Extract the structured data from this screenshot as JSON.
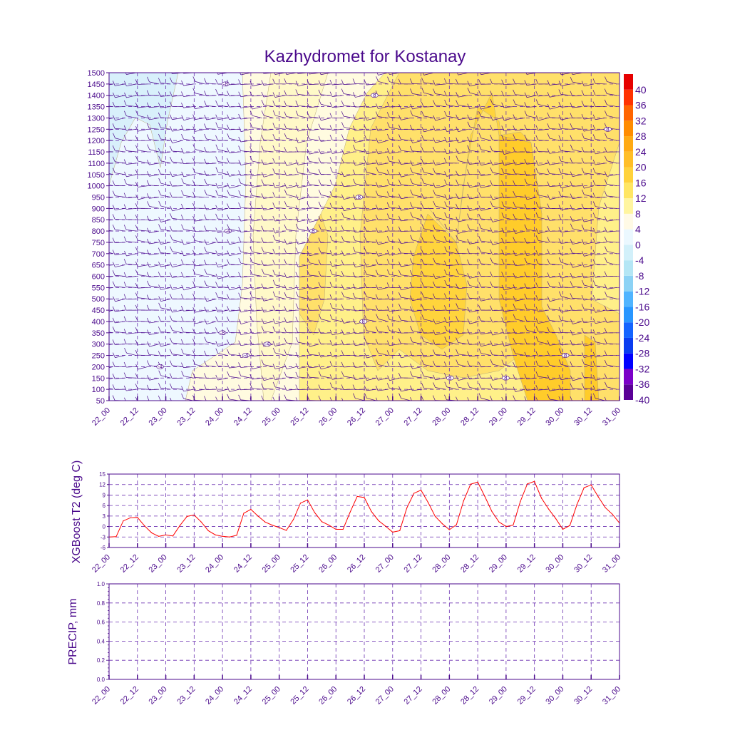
{
  "title": "Kazhydromet for Kostanay",
  "time_labels": [
    "22_00",
    "22_12",
    "23_00",
    "23_12",
    "24_00",
    "24_12",
    "25_00",
    "25_12",
    "26_00",
    "26_12",
    "27_00",
    "27_12",
    "28_00",
    "28_12",
    "29_00",
    "29_12",
    "30_00",
    "30_12",
    "31_00"
  ],
  "colors": {
    "text": "#4b0a8c",
    "line": "#ff0000",
    "colorbar": [
      "#5a0096",
      "#7b00c8",
      "#0000ff",
      "#0a3cf0",
      "#1464ff",
      "#2896ff",
      "#50b4ff",
      "#8cd2f5",
      "#b4e6f5",
      "#d2f0fa",
      "#ebf8ff",
      "#fffae6",
      "#fff5a0",
      "#ffe664",
      "#ffd23c",
      "#ffbe28",
      "#ffaa14",
      "#ff8c00",
      "#ff6400",
      "#ff3200",
      "#e60000"
    ]
  },
  "chart_data": [
    {
      "type": "heatmap",
      "title": "Kazhydromet for Kostanay",
      "xlabel": "",
      "ylabel": "",
      "x_ticks": [
        "22_00",
        "22_12",
        "23_00",
        "23_12",
        "24_00",
        "24_12",
        "25_00",
        "25_12",
        "26_00",
        "26_12",
        "27_00",
        "27_12",
        "28_00",
        "28_12",
        "29_00",
        "29_12",
        "30_00",
        "30_12",
        "31_00"
      ],
      "y_ticks": [
        50,
        100,
        150,
        200,
        250,
        300,
        350,
        400,
        450,
        500,
        550,
        600,
        650,
        700,
        750,
        800,
        850,
        900,
        950,
        1000,
        1050,
        1100,
        1150,
        1200,
        1250,
        1300,
        1350,
        1400,
        1450,
        1500
      ],
      "ylim": [
        50,
        1500
      ],
      "colorbar_levels": [
        -40,
        -36,
        -32,
        -28,
        -24,
        -20,
        -16,
        -12,
        -8,
        -4,
        0,
        4,
        8,
        12,
        16,
        20,
        24,
        28,
        32,
        36,
        40
      ],
      "colorbar_labels": [
        "40",
        "36",
        "32",
        "28",
        "24",
        "20",
        "16",
        "12",
        "8",
        "4",
        "0",
        "-4",
        "-8",
        "-12",
        "-16",
        "-20",
        "-24",
        "-28",
        "-32",
        "-36",
        "-40"
      ],
      "contour_labels": [
        {
          "text": "-8",
          "x": 0.228,
          "y": 1450
        },
        {
          "text": "-4",
          "x": 0.233,
          "y": 800
        },
        {
          "text": "-8",
          "x": 0.222,
          "y": 350
        },
        {
          "text": "-4",
          "x": 0.1,
          "y": 200
        },
        {
          "text": "-4",
          "x": 0.268,
          "y": 250
        },
        {
          "text": "-4",
          "x": 0.31,
          "y": 300
        },
        {
          "text": "8",
          "x": 0.4,
          "y": 800
        },
        {
          "text": "8",
          "x": 0.52,
          "y": 1400
        },
        {
          "text": "8",
          "x": 0.49,
          "y": 950
        },
        {
          "text": "8",
          "x": 0.498,
          "y": 400
        },
        {
          "text": "8",
          "x": 0.668,
          "y": 150
        },
        {
          "text": "8",
          "x": 0.777,
          "y": 150
        },
        {
          "text": "8",
          "x": 0.894,
          "y": 250
        },
        {
          "text": "8",
          "x": 0.977,
          "y": 1250
        }
      ]
    },
    {
      "type": "line",
      "xlabel": "",
      "ylabel": "XGBoost T2 (deg C)",
      "x_ticks": [
        "22_00",
        "22_12",
        "23_00",
        "23_12",
        "24_00",
        "24_12",
        "25_00",
        "25_12",
        "26_00",
        "26_12",
        "27_00",
        "27_12",
        "28_00",
        "28_12",
        "29_00",
        "29_12",
        "30_00",
        "30_12",
        "31_00"
      ],
      "y_ticks": [
        "-6",
        "-3",
        "0",
        "3",
        "6",
        "9",
        "12",
        "15"
      ],
      "ylim": [
        -6,
        15
      ],
      "series": [
        {
          "name": "T2",
          "x": [
            0,
            3,
            6,
            9,
            12,
            15,
            18,
            21,
            24,
            27,
            30,
            33,
            36,
            39,
            42,
            45,
            48,
            51,
            54,
            57,
            60,
            63,
            66,
            69,
            72,
            75,
            78,
            81,
            84,
            87,
            90,
            93,
            96,
            99,
            102,
            105,
            108,
            111,
            114,
            117,
            120,
            123,
            126,
            129,
            132,
            135,
            138,
            141,
            144,
            147,
            150,
            153,
            156,
            159,
            162,
            165,
            168,
            171,
            174,
            177,
            180,
            183,
            186,
            189,
            192,
            195,
            198,
            201,
            204,
            207,
            210,
            213,
            216
          ],
          "y": [
            -3,
            -2.9,
            1.6,
            2.5,
            2.6,
            0.2,
            -1.8,
            -2.8,
            -2.4,
            -2.7,
            0.3,
            2.9,
            3.3,
            1.3,
            -1.2,
            -2.4,
            -2.8,
            -3,
            -2.5,
            3.8,
            4.9,
            3,
            1.3,
            0.4,
            -0.3,
            -1.1,
            2,
            6.7,
            7.6,
            4,
            1.4,
            0.4,
            -0.8,
            -0.8,
            4.1,
            8.6,
            8.3,
            4.3,
            1.7,
            0.1,
            -1.6,
            -1.2,
            5.3,
            9.5,
            10.4,
            6.9,
            2.9,
            0.8,
            -0.9,
            0.5,
            7.3,
            12.1,
            12.7,
            8.6,
            4.3,
            1.3,
            0,
            0.4,
            7.1,
            12.2,
            12.9,
            8.1,
            5,
            2.3,
            -0.8,
            0.3,
            6.3,
            11.1,
            11.9,
            8.5,
            5.4,
            3.5,
            1
          ]
        }
      ]
    },
    {
      "type": "line",
      "xlabel": "",
      "ylabel": "PRECIP, mm",
      "x_ticks": [
        "22_00",
        "22_12",
        "23_00",
        "23_12",
        "24_00",
        "24_12",
        "25_00",
        "25_12",
        "26_00",
        "26_12",
        "27_00",
        "27_12",
        "28_00",
        "28_12",
        "29_00",
        "29_12",
        "30_00",
        "30_12",
        "31_00"
      ],
      "y_ticks": [
        "0.0",
        "0.2",
        "0.4",
        "0.6",
        "0.8",
        "1.0"
      ],
      "ylim": [
        0,
        1
      ],
      "series": []
    }
  ]
}
